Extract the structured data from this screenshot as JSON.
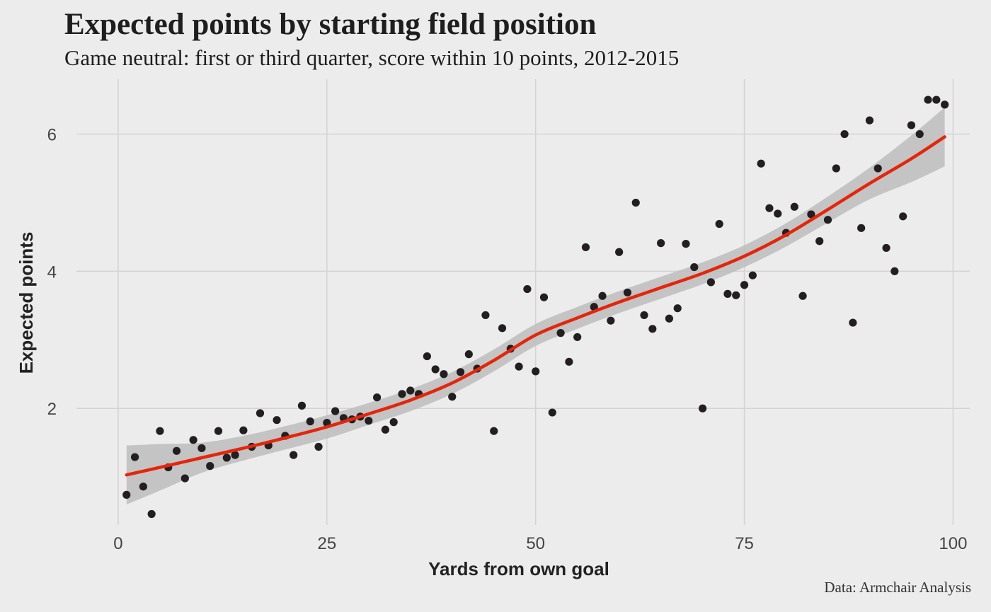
{
  "title": "Expected points by starting field position",
  "subtitle": "Game neutral: first or third quarter, score within 10 points, 2012-2015",
  "caption": "Data: Armchair Analysis",
  "colors": {
    "background": "#ececec",
    "grid": "#d3d3d3",
    "points": "#231f20",
    "smooth_line": "#e3260c",
    "ribbon": "#bdbdbd"
  },
  "chart_data": {
    "type": "scatter",
    "xlabel": "Yards from own goal",
    "ylabel": "Expected points",
    "xlim": [
      -5,
      102
    ],
    "ylim": [
      0.3,
      6.8
    ],
    "xticks": [
      0,
      25,
      50,
      75,
      100
    ],
    "yticks": [
      2,
      4,
      6
    ],
    "grid": true,
    "legend": "none",
    "points": [
      [
        1,
        0.74
      ],
      [
        2,
        1.29
      ],
      [
        3,
        0.86
      ],
      [
        4,
        0.46
      ],
      [
        5,
        1.67
      ],
      [
        6,
        1.14
      ],
      [
        7,
        1.38
      ],
      [
        8,
        0.98
      ],
      [
        9,
        1.54
      ],
      [
        10,
        1.42
      ],
      [
        11,
        1.16
      ],
      [
        12,
        1.67
      ],
      [
        13,
        1.28
      ],
      [
        14,
        1.32
      ],
      [
        15,
        1.68
      ],
      [
        16,
        1.44
      ],
      [
        17,
        1.93
      ],
      [
        18,
        1.46
      ],
      [
        19,
        1.83
      ],
      [
        20,
        1.6
      ],
      [
        21,
        1.32
      ],
      [
        22,
        2.04
      ],
      [
        23,
        1.81
      ],
      [
        24,
        1.44
      ],
      [
        25,
        1.79
      ],
      [
        26,
        1.96
      ],
      [
        27,
        1.86
      ],
      [
        28,
        1.84
      ],
      [
        29,
        1.88
      ],
      [
        30,
        1.82
      ],
      [
        31,
        2.16
      ],
      [
        32,
        1.69
      ],
      [
        33,
        1.8
      ],
      [
        34,
        2.21
      ],
      [
        35,
        2.26
      ],
      [
        36,
        2.21
      ],
      [
        37,
        2.76
      ],
      [
        38,
        2.57
      ],
      [
        39,
        2.5
      ],
      [
        40,
        2.17
      ],
      [
        41,
        2.53
      ],
      [
        42,
        2.79
      ],
      [
        43,
        2.58
      ],
      [
        44,
        3.36
      ],
      [
        45,
        1.67
      ],
      [
        46,
        3.17
      ],
      [
        47,
        2.87
      ],
      [
        48,
        2.61
      ],
      [
        49,
        3.74
      ],
      [
        50,
        2.54
      ],
      [
        51,
        3.62
      ],
      [
        52,
        1.94
      ],
      [
        53,
        3.1
      ],
      [
        54,
        2.68
      ],
      [
        55,
        3.04
      ],
      [
        56,
        4.35
      ],
      [
        57,
        3.48
      ],
      [
        58,
        3.64
      ],
      [
        59,
        3.28
      ],
      [
        60,
        4.28
      ],
      [
        61,
        3.69
      ],
      [
        62,
        5.0
      ],
      [
        63,
        3.36
      ],
      [
        64,
        3.16
      ],
      [
        65,
        4.41
      ],
      [
        66,
        3.31
      ],
      [
        67,
        3.46
      ],
      [
        68,
        4.4
      ],
      [
        69,
        4.06
      ],
      [
        70,
        2.0
      ],
      [
        71,
        3.84
      ],
      [
        72,
        4.69
      ],
      [
        73,
        3.67
      ],
      [
        74,
        3.65
      ],
      [
        75,
        3.8
      ],
      [
        76,
        3.94
      ],
      [
        77,
        5.57
      ],
      [
        78,
        4.92
      ],
      [
        79,
        4.84
      ],
      [
        80,
        4.56
      ],
      [
        81,
        4.94
      ],
      [
        82,
        3.64
      ],
      [
        83,
        4.83
      ],
      [
        84,
        4.44
      ],
      [
        85,
        4.75
      ],
      [
        86,
        5.5
      ],
      [
        87,
        6.0
      ],
      [
        88,
        3.25
      ],
      [
        89,
        4.63
      ],
      [
        90,
        6.2
      ],
      [
        91,
        5.5
      ],
      [
        92,
        4.34
      ],
      [
        93,
        4.0
      ],
      [
        94,
        4.8
      ],
      [
        95,
        6.13
      ],
      [
        96,
        6.0
      ],
      [
        97,
        6.5
      ],
      [
        98,
        6.5
      ],
      [
        99,
        6.43
      ]
    ],
    "smooth": {
      "x": [
        1,
        5,
        10,
        15,
        20,
        25,
        30,
        35,
        40,
        45,
        50,
        55,
        60,
        65,
        70,
        75,
        80,
        85,
        90,
        95,
        99
      ],
      "y": [
        1.03,
        1.14,
        1.28,
        1.42,
        1.57,
        1.73,
        1.92,
        2.12,
        2.37,
        2.7,
        3.07,
        3.32,
        3.55,
        3.76,
        3.97,
        4.22,
        4.53,
        4.9,
        5.28,
        5.64,
        5.96
      ],
      "lower": [
        0.6,
        0.8,
        1.06,
        1.24,
        1.4,
        1.56,
        1.76,
        1.96,
        2.21,
        2.54,
        2.91,
        3.16,
        3.39,
        3.6,
        3.81,
        4.06,
        4.36,
        4.71,
        5.05,
        5.3,
        5.53
      ],
      "upper": [
        1.46,
        1.48,
        1.5,
        1.6,
        1.74,
        1.9,
        2.08,
        2.28,
        2.53,
        2.86,
        3.23,
        3.48,
        3.71,
        3.92,
        4.13,
        4.38,
        4.7,
        5.09,
        5.51,
        5.98,
        6.39
      ]
    }
  }
}
